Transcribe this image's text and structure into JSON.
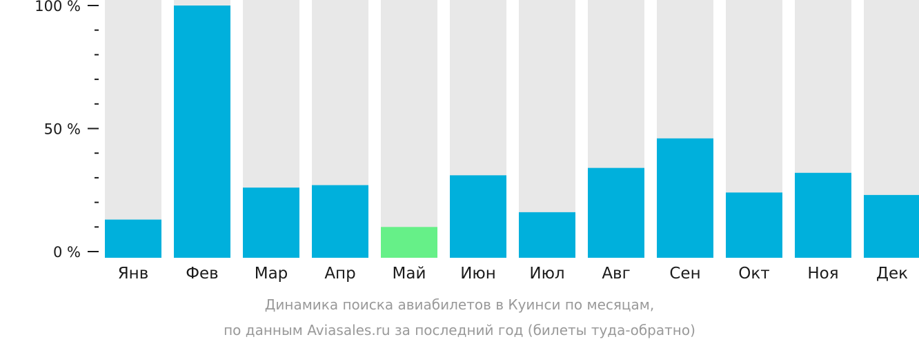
{
  "chart_data": {
    "type": "bar",
    "categories": [
      "Янв",
      "Фев",
      "Мар",
      "Апр",
      "Май",
      "Июн",
      "Июл",
      "Авг",
      "Сен",
      "Окт",
      "Ноя",
      "Дек"
    ],
    "values": [
      13,
      100,
      26,
      27,
      10,
      31,
      16,
      34,
      46,
      24,
      32,
      23
    ],
    "ylim": [
      0,
      100
    ],
    "yticks": [
      {
        "value": 100,
        "label": "100 %"
      },
      {
        "value": 50,
        "label": "50 %"
      },
      {
        "value": 0,
        "label": "0 %"
      }
    ],
    "minor_tick_step": 10,
    "highlight_index": 4,
    "colors": {
      "bar": "#00b0dc",
      "highlight": "#66f088",
      "background_bar": "#e8e8e8",
      "axis": "#1a1a1a"
    },
    "grid": false,
    "legend": "none"
  },
  "caption": {
    "line1": "Динамика поиска авиабилетов в Куинси по месяцам,",
    "line2": "по данным Aviasales.ru за последний год (билеты туда-обратно)"
  }
}
